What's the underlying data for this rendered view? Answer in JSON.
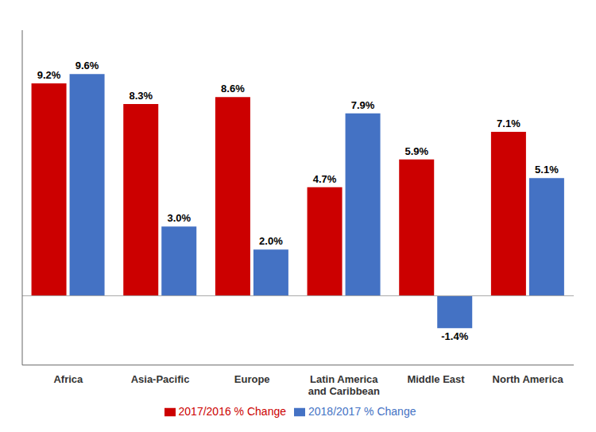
{
  "chart_data": {
    "type": "bar",
    "categories": [
      "Africa",
      "Asia-Pacific",
      "Europe",
      "Latin America\nand Caribbean",
      "Middle East",
      "North America"
    ],
    "series": [
      {
        "name": "2017/2016 % Change",
        "color": "#cc0000",
        "values": [
          9.2,
          8.3,
          8.6,
          4.7,
          5.9,
          7.1
        ],
        "value_labels": [
          "9.2%",
          "8.3%",
          "8.6%",
          "4.7%",
          "5.9%",
          "7.1%"
        ]
      },
      {
        "name": "2018/2017 % Change",
        "color": "#4472c4",
        "values": [
          9.6,
          3.0,
          2.0,
          7.9,
          -1.4,
          5.1
        ],
        "value_labels": [
          "9.6%",
          "3.0%",
          "2.0%",
          "7.9%",
          "-1.4%",
          "5.1%"
        ]
      }
    ],
    "ylim": [
      -3.0,
      11.5
    ],
    "grid": false,
    "legend": "bottom",
    "data_labels": true,
    "tick_labels": "x"
  }
}
